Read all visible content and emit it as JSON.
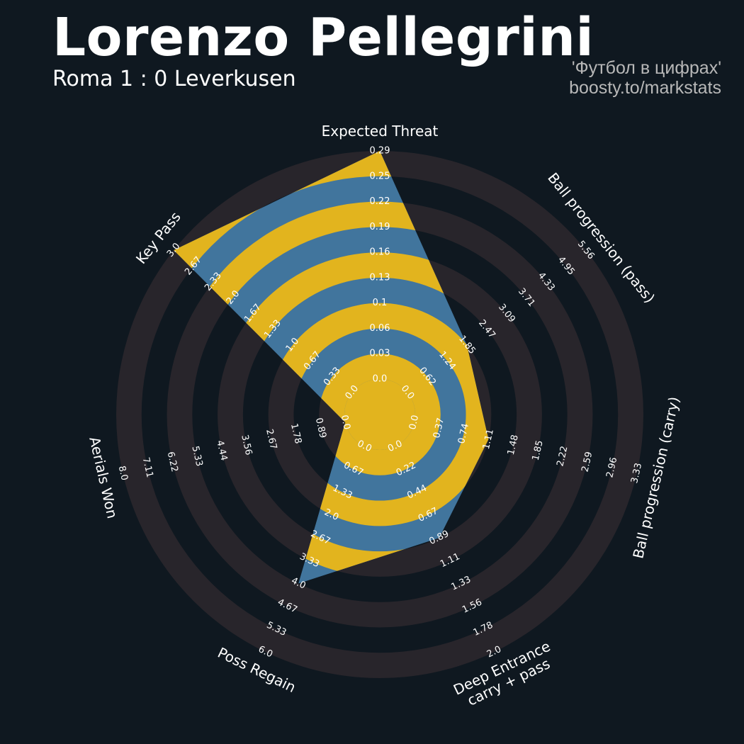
{
  "header": {
    "title": "Lorenzo Pellegrini",
    "subtitle": "Roma 1 : 0 Leverkusen",
    "credit_line1": "'Футбол в цифрах'",
    "credit_line2": "boosty.to/markstats"
  },
  "colors": {
    "background": "#0f1820",
    "outer_ring": "#28252b",
    "player_fill": "#41759d",
    "inner_ring": "#e2b41e",
    "text": "#ffffff",
    "credit": "#b8b8b8"
  },
  "chart_data": {
    "type": "radar",
    "axes": [
      {
        "label": [
          "Expected Threat"
        ],
        "value": 0.29,
        "ticks": [
          "0.0",
          "0.03",
          "0.06",
          "0.1",
          "0.13",
          "0.16",
          "0.19",
          "0.22",
          "0.25",
          "0.29"
        ]
      },
      {
        "label": [
          "Ball progression (pass)"
        ],
        "value": 1.85,
        "ticks": [
          "0.0",
          "0.62",
          "1.24",
          "1.85",
          "2.47",
          "3.09",
          "3.71",
          "4.33",
          "4.95",
          "5.56"
        ]
      },
      {
        "label": [
          "Ball progression (carry)"
        ],
        "value": 1.11,
        "ticks": [
          "0.0",
          "0.37",
          "0.74",
          "1.11",
          "1.48",
          "1.85",
          "2.22",
          "2.59",
          "2.96",
          "3.33"
        ]
      },
      {
        "label": [
          "Deep Entrance",
          "carry + pass"
        ],
        "value": 0.89,
        "ticks": [
          "0.0",
          "0.22",
          "0.44",
          "0.67",
          "0.89",
          "1.11",
          "1.33",
          "1.56",
          "1.78",
          "2.0"
        ]
      },
      {
        "label": [
          "Poss Regain"
        ],
        "value": 4.0,
        "ticks": [
          "0.0",
          "0.67",
          "1.33",
          "2.0",
          "2.67",
          "3.33",
          "4.0",
          "4.67",
          "5.33",
          "6.0"
        ]
      },
      {
        "label": [
          "Aerials Won"
        ],
        "value": 0.0,
        "ticks": [
          "0.0",
          "0.89",
          "1.78",
          "2.67",
          "3.56",
          "4.44",
          "5.33",
          "6.22",
          "7.11",
          "8.0"
        ]
      },
      {
        "label": [
          "Key Pass"
        ],
        "value": 3.0,
        "ticks": [
          "0.0",
          "0.33",
          "0.67",
          "1.0",
          "1.33",
          "1.67",
          "2.0",
          "2.33",
          "2.67",
          "3.0"
        ]
      }
    ],
    "min_values": [
      0.0,
      0.0,
      0.0,
      0.0,
      0.0,
      0.0,
      0.0
    ],
    "max_values": [
      0.29,
      5.56,
      3.33,
      2.0,
      6.0,
      8.0,
      3.0
    ],
    "ring_count": 9
  }
}
